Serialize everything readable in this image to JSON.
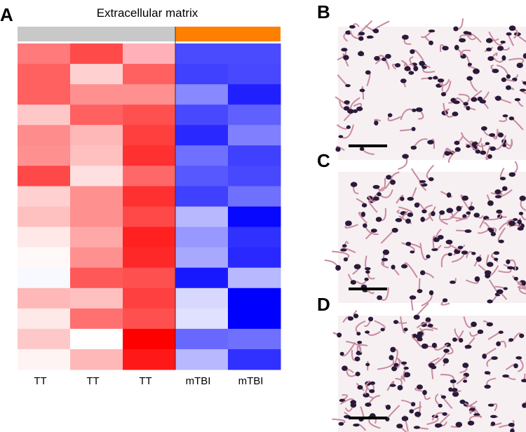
{
  "heatmap": {
    "label": "A",
    "title": "Extracellular matrix",
    "group_colors": [
      "#c8c8c8",
      "#ff8000"
    ],
    "columns": [
      "TT",
      "TT",
      "TT",
      "mTBI",
      "mTBI"
    ],
    "cell_colors": [
      [
        "#ff7a7a",
        "#ff4a4a",
        "#ffb0b8",
        "#4a4aff",
        "#4a4aff"
      ],
      [
        "#ff6060",
        "#ffd0d0",
        "#ff6060",
        "#4040ff",
        "#4848ff"
      ],
      [
        "#ff6060",
        "#ff9090",
        "#ff9090",
        "#8888ff",
        "#2020ff"
      ],
      [
        "#ffc8c8",
        "#ff6060",
        "#ff5050",
        "#4848ff",
        "#6060ff"
      ],
      [
        "#ff8c8c",
        "#ffb8b8",
        "#ff3e3e",
        "#2828ff",
        "#8080ff"
      ],
      [
        "#ff9090",
        "#ffc0c0",
        "#ff3030",
        "#7070ff",
        "#4040ff"
      ],
      [
        "#ff4848",
        "#ffe0e0",
        "#ff6868",
        "#5858ff",
        "#4848ff"
      ],
      [
        "#ffd0d0",
        "#ff9090",
        "#ff3030",
        "#4040ff",
        "#7070ff"
      ],
      [
        "#ffc0c0",
        "#ff9090",
        "#ff4848",
        "#b8b8ff",
        "#0808ff"
      ],
      [
        "#ffe8e8",
        "#ffa8a8",
        "#ff2020",
        "#9898ff",
        "#3030ff"
      ],
      [
        "#fff8f8",
        "#ff9090",
        "#ff2828",
        "#a8a8ff",
        "#2828ff"
      ],
      [
        "#f8f8ff",
        "#ff5858",
        "#ff5050",
        "#1818ff",
        "#b8b8ff"
      ],
      [
        "#ffb8b8",
        "#ffc0c0",
        "#ff4040",
        "#d8d8ff",
        "#0000ff"
      ],
      [
        "#ffe8e8",
        "#ff7070",
        "#ff5050",
        "#e0e0ff",
        "#0000ff"
      ],
      [
        "#ffc8c8",
        "#ffffff",
        "#ff0000",
        "#6868ff",
        "#7070ff"
      ],
      [
        "#fff4f4",
        "#ffb8b8",
        "#ff1818",
        "#b8b8ff",
        "#3030ff"
      ]
    ]
  },
  "micrographs": [
    {
      "label": "B"
    },
    {
      "label": "C"
    },
    {
      "label": "D"
    }
  ]
}
